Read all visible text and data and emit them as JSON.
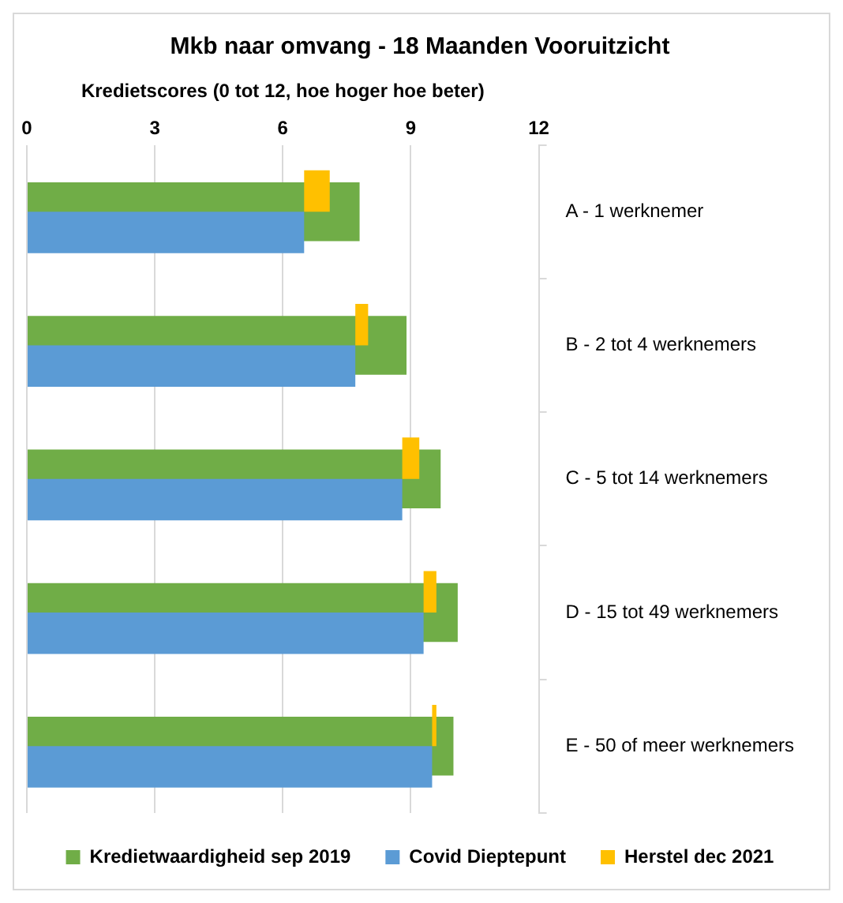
{
  "chart_data": {
    "type": "bar",
    "orientation": "horizontal",
    "title": "Mkb naar omvang - 18 Maanden Vooruitzicht",
    "xlabel": "Kredietscores (0 tot 12, hoe hoger hoe beter)",
    "categories": [
      "A - 1 werknemer",
      "B - 2 tot 4 werknemers",
      "C - 5 tot 14 werknemers",
      "D - 15 tot 49 werknemers",
      "E - 50 of meer werknemers"
    ],
    "series": [
      {
        "name": "Kredietwaardigheid sep 2019",
        "color": "#70ad47",
        "values": [
          7.8,
          8.9,
          9.7,
          10.1,
          10.0
        ]
      },
      {
        "name": "Covid Dieptepunt",
        "color": "#5b9bd5",
        "values": [
          6.5,
          7.7,
          8.8,
          9.3,
          9.5
        ]
      },
      {
        "name": "Herstel dec 2021",
        "color": "#ffc000",
        "values": [
          0.6,
          0.3,
          0.4,
          0.3,
          0.1
        ],
        "base": [
          6.5,
          7.7,
          8.8,
          9.3,
          9.5
        ]
      }
    ],
    "xlim": [
      0,
      12
    ],
    "xticks": [
      0,
      3,
      6,
      9,
      12
    ],
    "grid": "x",
    "legend": "bottom"
  }
}
